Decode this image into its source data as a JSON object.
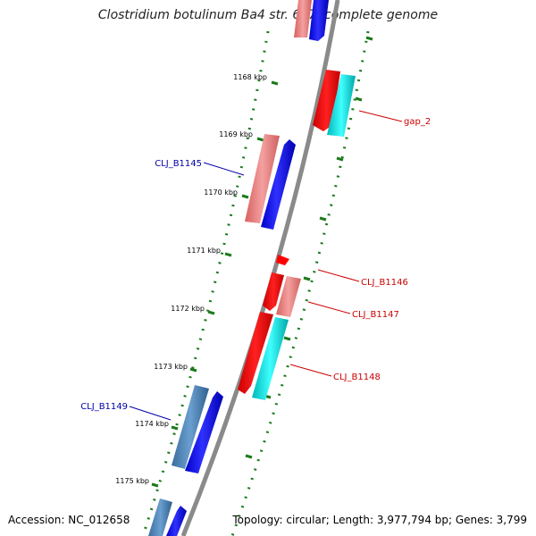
{
  "title": "Clostridium botulinum Ba4 str. 657, complete genome",
  "accession_text": "Accession: NC_012658",
  "summary_text": "Topology: circular; Length: 3,977,794 bp; Genes: 3,799",
  "colors": {
    "backbone": "#808080",
    "tick": "#1a7a1a",
    "forward_gene": "#0000ff",
    "forward_gene_light": "#4d85b8",
    "reverse_gene": "#ff0000",
    "reverse_gene_light": "#f08080",
    "gap_feature": "#00cccc",
    "label_forward": "#0000aa",
    "label_reverse": "#cc0000"
  },
  "scale_labels": [
    "1168 kbp",
    "1169 kbp",
    "1170 kbp",
    "1171 kbp",
    "1172 kbp",
    "1173 kbp",
    "1174 kbp",
    "1175 kbp"
  ],
  "feature_labels": {
    "gap_2": "gap_2",
    "clj_b1145": "CLJ_B1145",
    "clj_b1146": "CLJ_B1146",
    "clj_b1147": "CLJ_B1147",
    "clj_b1148": "CLJ_B1148",
    "clj_b1149": "CLJ_B1149"
  }
}
